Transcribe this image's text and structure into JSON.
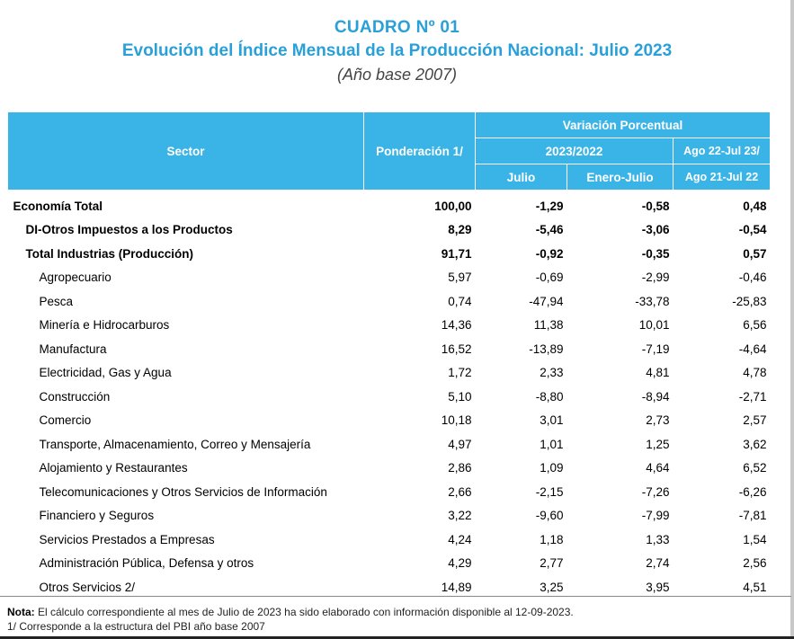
{
  "header": {
    "title": "CUADRO Nº 01",
    "subtitle": "Evolución del Índice Mensual de la Producción Nacional: Julio 2023",
    "base_note": "(Año base 2007)"
  },
  "table": {
    "col_sector": "Sector",
    "col_ponderacion": "Ponderación 1/",
    "col_variacion": "Variación Porcentual",
    "col_period": "2023/2022",
    "col_julio": "Julio",
    "col_enero_julio": "Enero-Julio",
    "col_annual_top": "Ago 22-Jul 23/",
    "col_annual_bottom": "Ago 21-Jul 22",
    "rows": [
      {
        "sector": "Economía Total",
        "pond": "100,00",
        "julio": "-1,29",
        "enero": "-0,58",
        "anual": "0,48"
      },
      {
        "sector": "DI-Otros Impuestos a los Productos",
        "pond": "8,29",
        "julio": "-5,46",
        "enero": "-3,06",
        "anual": "-0,54"
      },
      {
        "sector": "Total  Industrias (Producción)",
        "pond": "91,71",
        "julio": "-0,92",
        "enero": "-0,35",
        "anual": "0,57"
      },
      {
        "sector": "Agropecuario",
        "pond": "5,97",
        "julio": "-0,69",
        "enero": "-2,99",
        "anual": "-0,46"
      },
      {
        "sector": "Pesca",
        "pond": "0,74",
        "julio": "-47,94",
        "enero": "-33,78",
        "anual": "-25,83"
      },
      {
        "sector": "Minería e Hidrocarburos",
        "pond": "14,36",
        "julio": "11,38",
        "enero": "10,01",
        "anual": "6,56"
      },
      {
        "sector": "Manufactura",
        "pond": "16,52",
        "julio": "-13,89",
        "enero": "-7,19",
        "anual": "-4,64"
      },
      {
        "sector": "Electricidad, Gas y Agua",
        "pond": "1,72",
        "julio": "2,33",
        "enero": "4,81",
        "anual": "4,78"
      },
      {
        "sector": "Construcción",
        "pond": "5,10",
        "julio": "-8,80",
        "enero": "-8,94",
        "anual": "-2,71"
      },
      {
        "sector": "Comercio",
        "pond": "10,18",
        "julio": "3,01",
        "enero": "2,73",
        "anual": "2,57"
      },
      {
        "sector": "Transporte, Almacenamiento, Correo y Mensajería",
        "pond": "4,97",
        "julio": "1,01",
        "enero": "1,25",
        "anual": "3,62"
      },
      {
        "sector": "Alojamiento y Restaurantes",
        "pond": "2,86",
        "julio": "1,09",
        "enero": "4,64",
        "anual": "6,52"
      },
      {
        "sector": "Telecomunicaciones y Otros Servicios de Información",
        "pond": "2,66",
        "julio": "-2,15",
        "enero": "-7,26",
        "anual": "-6,26"
      },
      {
        "sector": "Financiero y Seguros",
        "pond": "3,22",
        "julio": "-9,60",
        "enero": "-7,99",
        "anual": "-7,81"
      },
      {
        "sector": "Servicios Prestados a Empresas",
        "pond": "4,24",
        "julio": "1,18",
        "enero": "1,33",
        "anual": "1,54"
      },
      {
        "sector": "Administración Pública, Defensa y otros",
        "pond": "4,29",
        "julio": "2,77",
        "enero": "2,74",
        "anual": "2,56"
      },
      {
        "sector": "Otros Servicios 2/",
        "pond": "14,89",
        "julio": "3,25",
        "enero": "3,95",
        "anual": "4,51"
      }
    ]
  },
  "notes": {
    "label": "Nota:",
    "text": " El cálculo correspondiente al mes de Julio de 2023 ha sido elaborado con información disponible al 12-09-2023.",
    "footnote": "1/ Corresponde a la estructura del PBI año base 2007"
  },
  "colors": {
    "title": "#2aa0d8",
    "header_bg": "#3ab4e6"
  }
}
